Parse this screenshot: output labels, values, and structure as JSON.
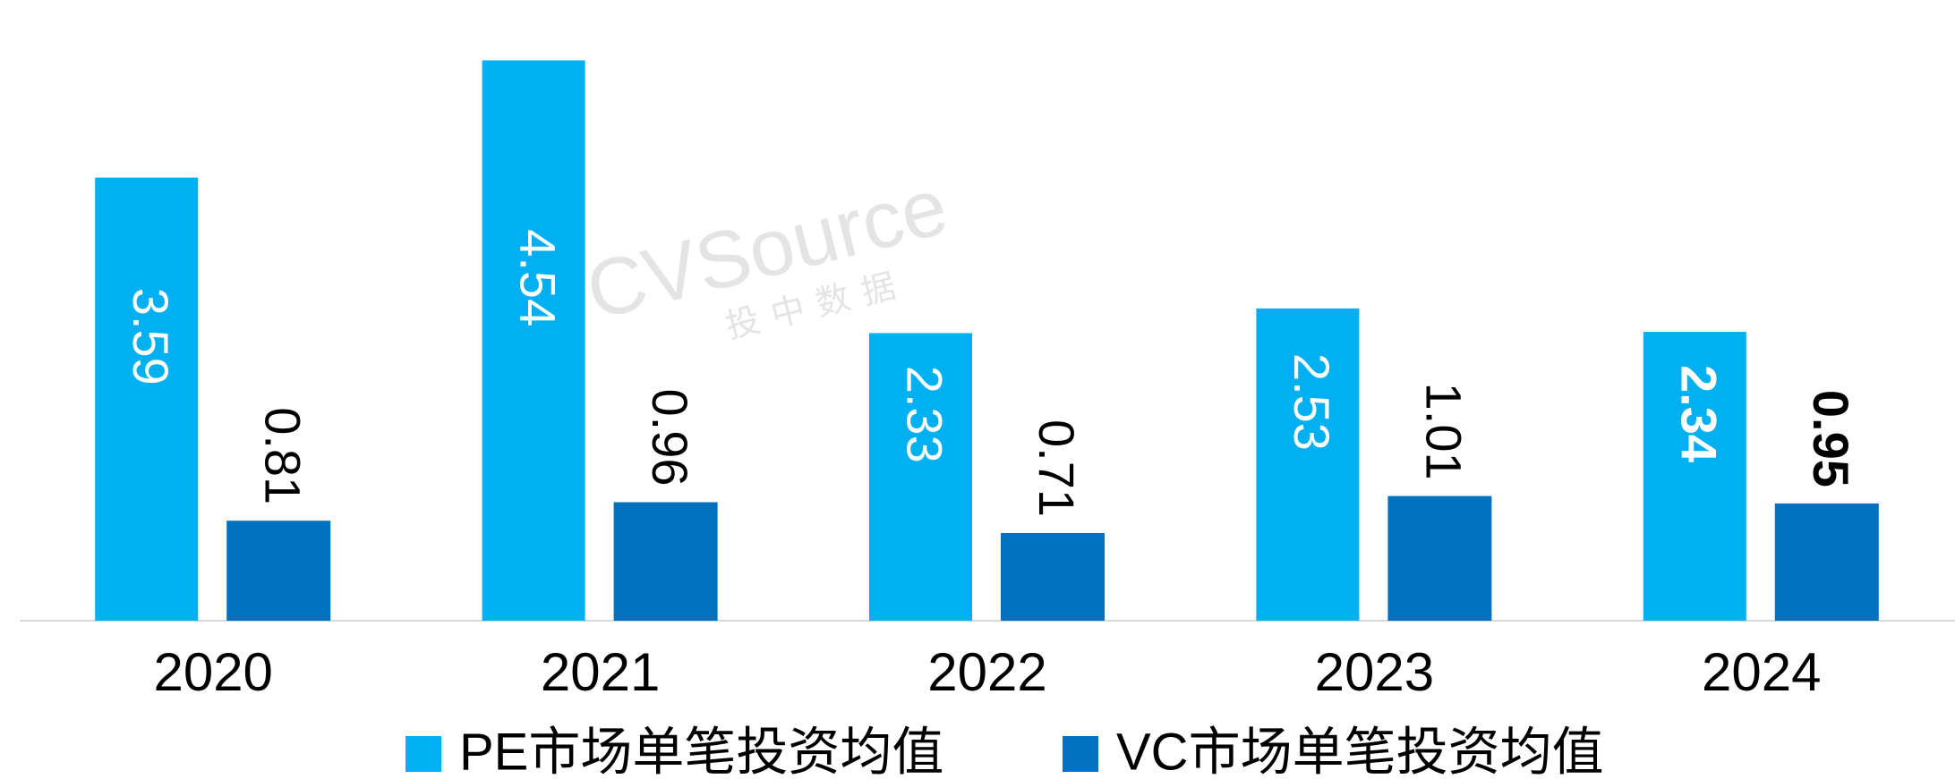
{
  "chart_data": {
    "type": "bar",
    "categories": [
      "2020",
      "2021",
      "2022",
      "2023",
      "2024"
    ],
    "series": [
      {
        "name": "PE市场单笔投资均值",
        "color": "#00b0f0",
        "values": [
          3.59,
          4.54,
          2.33,
          2.53,
          2.34
        ]
      },
      {
        "name": "VC市场单笔投资均值",
        "color": "#0070c0",
        "values": [
          0.81,
          0.96,
          0.71,
          1.01,
          0.95
        ]
      }
    ],
    "ylim": [
      0,
      5
    ],
    "bold_last_labels": true,
    "legend": "bottom",
    "watermark": [
      "CVSource",
      "投中数据"
    ]
  }
}
